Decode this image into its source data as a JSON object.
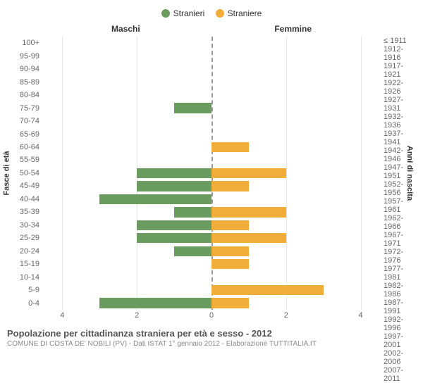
{
  "legend": {
    "male": {
      "label": "Stranieri",
      "color": "#6a9c5f"
    },
    "female": {
      "label": "Straniere",
      "color": "#f0ad3a"
    }
  },
  "headers": {
    "left": "Maschi",
    "right": "Femmine"
  },
  "y_left_title": "Fasce di età",
  "y_right_title": "Anni di nascita",
  "age_labels": [
    "100+",
    "95-99",
    "90-94",
    "85-89",
    "80-84",
    "75-79",
    "70-74",
    "65-69",
    "60-64",
    "55-59",
    "50-54",
    "45-49",
    "40-44",
    "35-39",
    "30-34",
    "25-29",
    "20-24",
    "15-19",
    "10-14",
    "5-9",
    "0-4"
  ],
  "birth_labels": [
    "≤ 1911",
    "1912-1916",
    "1917-1921",
    "1922-1926",
    "1927-1931",
    "1932-1936",
    "1937-1941",
    "1942-1946",
    "1947-1951",
    "1952-1956",
    "1957-1961",
    "1962-1966",
    "1967-1971",
    "1972-1976",
    "1977-1981",
    "1982-1986",
    "1987-1991",
    "1992-1996",
    "1997-2001",
    "2002-2006",
    "2007-2011"
  ],
  "male_values": [
    0,
    0,
    0,
    0,
    0,
    1,
    0,
    0,
    0,
    0,
    2,
    2,
    3,
    1,
    2,
    2,
    1,
    0,
    0,
    0,
    3
  ],
  "female_values": [
    0,
    0,
    0,
    0,
    0,
    0,
    0,
    0,
    1,
    0,
    2,
    1,
    0,
    2,
    1,
    2,
    1,
    1,
    0,
    3,
    1
  ],
  "x_max": 4.5,
  "x_ticks": [
    0,
    2,
    4
  ],
  "grid_color": "#e6e6e6",
  "center_line_color": "#999999",
  "title": "Popolazione per cittadinanza straniera per età e sesso - 2012",
  "subtitle": "COMUNE DI COSTA DE' NOBILI (PV) - Dati ISTAT 1° gennaio 2012 - Elaborazione TUTTITALIA.IT"
}
